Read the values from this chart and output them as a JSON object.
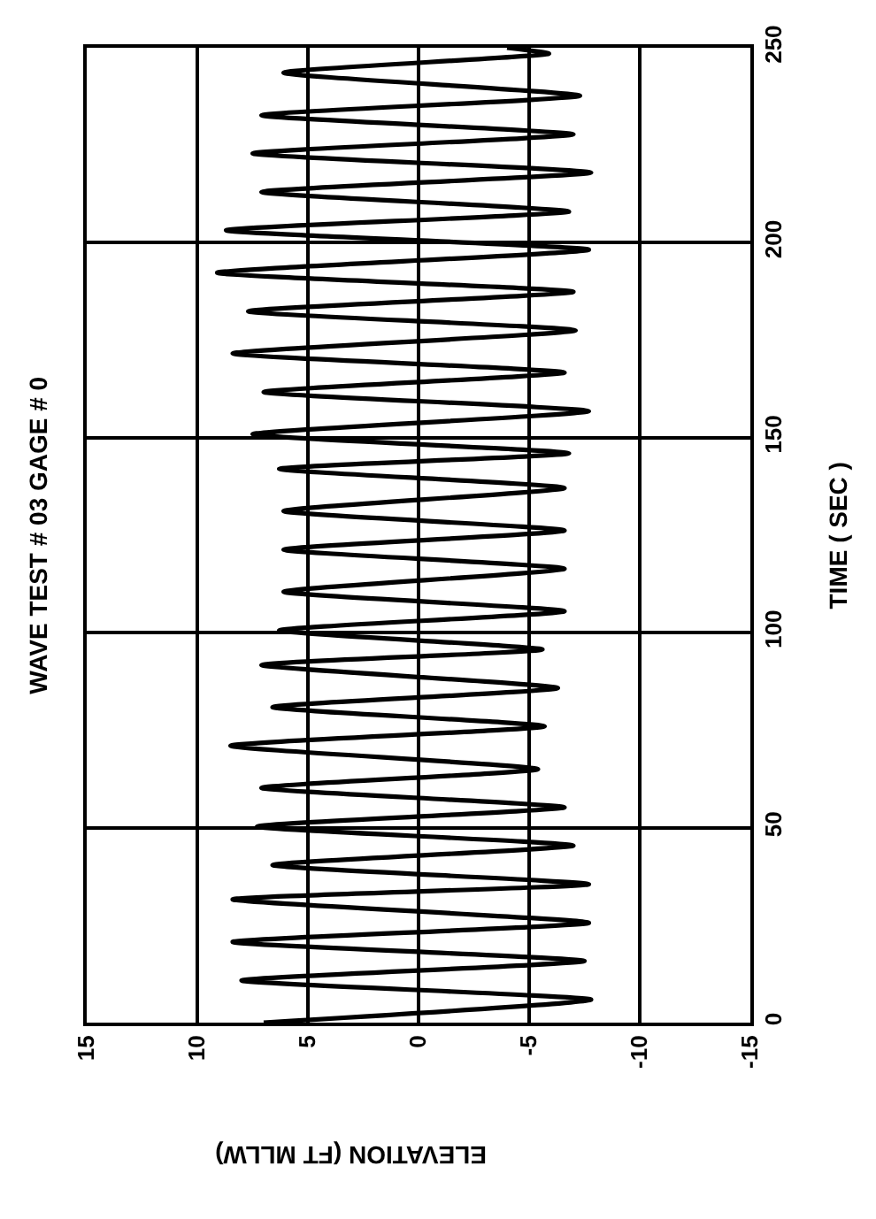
{
  "chart_data": {
    "type": "line",
    "orientation": "horizontal",
    "title": "WAVE TEST # 03 GAGE # 0",
    "xlabel": "ELEVATION (FT MLLW)",
    "ylabel": "TIME ( SEC )",
    "x": [
      0,
      5.9,
      10.8,
      15.8,
      20.7,
      25.6,
      31.6,
      35.5,
      40.4,
      45.4,
      50.3,
      55.2,
      60.2,
      65,
      71,
      76,
      80.9,
      85.8,
      91.7,
      95.7,
      100.6,
      105.5,
      110.5,
      116.4,
      121.3,
      126.2,
      131.2,
      137.1,
      142,
      146,
      150.9,
      156.8,
      161.7,
      166.7,
      171.6,
      177.5,
      182.4,
      187.4,
      192.3,
      198.2,
      203.2,
      208,
      213,
      218,
      222.9,
      227.8,
      232.7,
      237.7,
      243.6,
      248.5,
      250
    ],
    "series": [
      {
        "color": "#000000",
        "values": [
          7,
          -7.8,
          8.0,
          -7.5,
          8.4,
          -7.7,
          8.4,
          -7.7,
          6.6,
          -7.0,
          7.3,
          -6.6,
          7.1,
          -5.4,
          8.5,
          -5.7,
          6.6,
          -6.3,
          7.1,
          -5.6,
          6.3,
          -6.6,
          6.1,
          -6.6,
          6.1,
          -6.6,
          6.1,
          -6.6,
          6.3,
          -6.8,
          7.5,
          -7.7,
          7.0,
          -6.6,
          8.4,
          -7.1,
          7.7,
          -7.0,
          9.1,
          -7.7,
          8.7,
          -6.8,
          7.1,
          -7.8,
          7.5,
          -7.0,
          7.1,
          -7.3,
          6.1,
          -5.9,
          -4
        ]
      }
    ],
    "ylim": [
      0,
      250
    ],
    "yticks": [
      0,
      50,
      100,
      150,
      200,
      250
    ],
    "xlim": [
      15,
      -15
    ],
    "xticks": [
      15,
      10,
      5,
      0,
      -5,
      -10,
      -15
    ],
    "grid": true,
    "marker": "none",
    "line_style": "solid"
  }
}
